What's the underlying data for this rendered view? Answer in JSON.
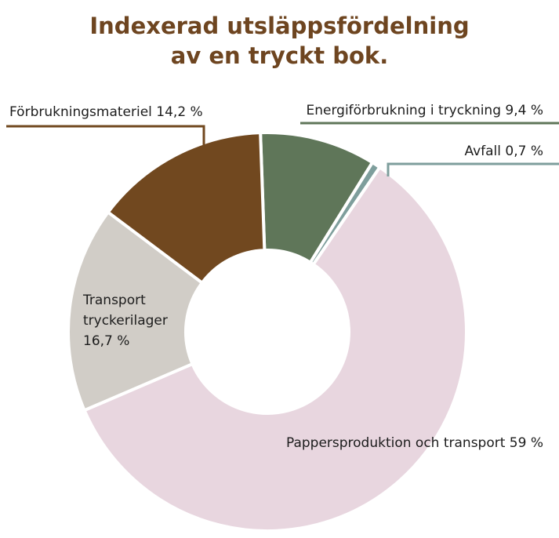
{
  "chart_data": {
    "type": "pie",
    "donut": true,
    "title_lines": [
      "Indexerad utsläppsfördelning",
      "av en tryckt bok."
    ],
    "start_angle_deg": -2,
    "slices": [
      {
        "label": "Energiförbrukning i tryckning 9,4 %",
        "value": 9.4,
        "color": "#5f7659"
      },
      {
        "label": "Avfall 0,7 %",
        "value": 0.7,
        "color": "#7e9e9c"
      },
      {
        "label": "Pappersproduktion och transport 59 %",
        "value": 59.0,
        "color": "#e8d6df"
      },
      {
        "label_lines": [
          "Transport",
          "tryckerilager",
          "16,7 %"
        ],
        "value": 16.7,
        "color": "#d1cdc7"
      },
      {
        "label": "Förbrukningsmateriel 14,2 %",
        "value": 14.2,
        "color": "#71481f"
      }
    ],
    "legend": "none"
  }
}
